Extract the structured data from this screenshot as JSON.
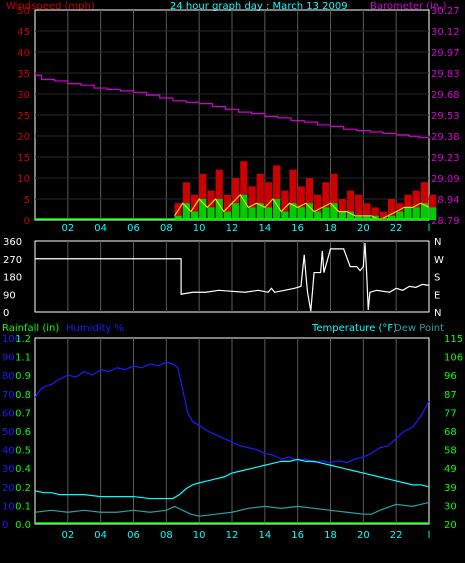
{
  "title": "24 hour graph day : March 13 2009",
  "colors": {
    "background": "#000000",
    "frame": "#ffffff",
    "grid": "#5a5a5a",
    "wind_label": "#cc0000",
    "wind_ticks": "#cc0000",
    "baro": "#d600d6",
    "title": "#00ffff",
    "wind_gust": "#cc0000",
    "wind_avg": "#00cc00",
    "wind_line": "#ffcc00",
    "direction": "#ffffff",
    "rain": "#00ff00",
    "humidity": "#1a1aff",
    "temperature": "#00ffff",
    "dewpoint": "#2aa0a0",
    "hour_ticks": "#00ffff"
  },
  "chart_data": [
    {
      "type": "line",
      "name": "wind-barometer",
      "left_label": "Windspeed (mph)",
      "right_label": "Barometer (in.)",
      "x_ticks": [
        "02",
        "04",
        "06",
        "08",
        "10",
        "12",
        "14",
        "16",
        "18",
        "20",
        "22",
        "l"
      ],
      "y_left_ticks": [
        "50",
        "45",
        "40",
        "35",
        "30",
        "25",
        "20",
        "15",
        "10",
        "5",
        "0"
      ],
      "y_right_ticks": [
        "30.27",
        "30.12",
        "29.97",
        "29.83",
        "29.68",
        "29.53",
        "29.38",
        "29.23",
        "29.09",
        "28.94",
        "28.79"
      ],
      "y_left_range": [
        0,
        50
      ],
      "y_right_range": [
        28.79,
        30.27
      ],
      "x_range": [
        0,
        24
      ],
      "barometer": {
        "x": [
          0,
          0.4,
          1.2,
          2.0,
          2.8,
          3.6,
          4.4,
          5.2,
          6.0,
          6.8,
          7.6,
          8.4,
          9.2,
          10.0,
          10.8,
          11.6,
          12.4,
          13.2,
          14.0,
          14.8,
          15.6,
          16.4,
          17.2,
          18.0,
          18.8,
          19.6,
          20.4,
          21.2,
          22.0,
          22.8,
          23.4,
          24
        ],
        "y": [
          29.81,
          29.78,
          29.77,
          29.75,
          29.74,
          29.72,
          29.71,
          29.7,
          29.69,
          29.67,
          29.65,
          29.63,
          29.62,
          29.61,
          29.59,
          29.57,
          29.55,
          29.54,
          29.52,
          29.51,
          29.49,
          29.48,
          29.46,
          29.45,
          29.43,
          29.42,
          29.41,
          29.4,
          29.39,
          29.38,
          29.37,
          29.38
        ]
      },
      "wind_gust": {
        "x": [
          8.5,
          9.0,
          9.5,
          10.0,
          10.5,
          11.0,
          11.5,
          12.0,
          12.5,
          13.0,
          13.5,
          14.0,
          14.5,
          15.0,
          15.5,
          16.0,
          16.5,
          17.0,
          17.5,
          18.0,
          18.5,
          19.0,
          19.5,
          20.0,
          20.5,
          21.0,
          21.5,
          22.0,
          22.5,
          23.0,
          23.5,
          24
        ],
        "y": [
          4,
          9,
          6,
          11,
          7,
          12,
          6,
          10,
          14,
          8,
          11,
          9,
          13,
          7,
          12,
          8,
          10,
          6,
          9,
          11,
          5,
          7,
          6,
          4,
          3,
          2,
          5,
          4,
          6,
          7,
          9,
          6
        ]
      },
      "wind_avg": {
        "x": [
          8.5,
          9.0,
          9.5,
          10.0,
          10.5,
          11.0,
          11.5,
          12.0,
          12.5,
          13.0,
          13.5,
          14.0,
          14.5,
          15.0,
          15.5,
          16.0,
          16.5,
          17.0,
          17.5,
          18.0,
          18.5,
          19.0,
          19.5,
          20.0,
          20.5,
          21.0,
          21.5,
          22.0,
          22.5,
          23.0,
          23.5,
          24
        ],
        "y": [
          1,
          4,
          2,
          5,
          3,
          5,
          2,
          4,
          6,
          3,
          4,
          3,
          5,
          2,
          4,
          3,
          4,
          2,
          3,
          4,
          2,
          2,
          1,
          1,
          1,
          0,
          1,
          2,
          3,
          3,
          4,
          3
        ]
      }
    },
    {
      "type": "line",
      "name": "wind-direction",
      "y_left_ticks": [
        "360",
        "270",
        "180",
        "90",
        "0"
      ],
      "y_right_ticks": [
        "N",
        "W",
        "S",
        "E",
        "N"
      ],
      "y_range": [
        0,
        360
      ],
      "x_range": [
        0,
        24
      ],
      "direction": {
        "x": [
          0,
          8.9,
          8.9,
          9.6,
          10.4,
          11.2,
          12.0,
          12.8,
          13.6,
          14.2,
          14.4,
          14.6,
          15.2,
          15.8,
          16.2,
          16.4,
          16.5,
          16.6,
          16.8,
          17.0,
          17.4,
          17.5,
          17.6,
          18.0,
          18.4,
          18.8,
          19.2,
          19.6,
          19.8,
          20.0,
          20.1,
          20.2,
          20.3,
          20.4,
          20.8,
          21.2,
          21.6,
          22.0,
          22.4,
          22.8,
          23.2,
          23.6,
          24
        ],
        "y": [
          270,
          270,
          90,
          100,
          100,
          110,
          105,
          100,
          110,
          100,
          120,
          100,
          110,
          120,
          130,
          290,
          190,
          100,
          5,
          200,
          200,
          310,
          200,
          320,
          320,
          320,
          230,
          230,
          210,
          230,
          350,
          200,
          10,
          100,
          110,
          105,
          100,
          120,
          110,
          130,
          125,
          140,
          135
        ]
      }
    },
    {
      "type": "line",
      "name": "rain-humidity-temperature",
      "left_label_rain": "Rainfall (in)",
      "left_label_humidity": "Humidity %",
      "right_label_temperature": "Temperature (°F)",
      "right_label_dewpoint": "Dew Point",
      "x_ticks": [
        "02",
        "04",
        "06",
        "08",
        "10",
        "12",
        "14",
        "16",
        "18",
        "20",
        "22",
        "l"
      ],
      "humidity_ticks": [
        "100",
        "90",
        "80",
        "70",
        "60",
        "50",
        "40",
        "30",
        "20",
        "10",
        "0"
      ],
      "rain_ticks": [
        "1.2",
        "1.1",
        "0.9",
        "0.8",
        "0.7",
        "0.6",
        "0.5",
        "0.4",
        "0.2",
        "0.1",
        "0.0"
      ],
      "temperature_ticks": [
        "115",
        "106",
        "96",
        "87",
        "77",
        "68",
        "58",
        "49",
        "39",
        "30",
        "20"
      ],
      "humidity_range": [
        0,
        100
      ],
      "temperature_range": [
        20,
        115
      ],
      "x_range": [
        0,
        24
      ],
      "humidity": {
        "x": [
          0,
          0.3,
          0.6,
          1.0,
          1.5,
          2.0,
          2.5,
          3.0,
          3.5,
          4.0,
          4.5,
          5.0,
          5.5,
          6.0,
          6.5,
          7.0,
          7.5,
          8.0,
          8.4,
          8.7,
          9.0,
          9.3,
          9.6,
          10.0,
          10.5,
          11.0,
          11.5,
          12.0,
          12.5,
          13.0,
          13.5,
          14.0,
          14.5,
          15.0,
          15.5,
          16.0,
          16.5,
          17.0,
          17.5,
          18.0,
          18.5,
          19.0,
          19.5,
          20.0,
          20.5,
          21.0,
          21.5,
          22.0,
          22.5,
          23.0,
          23.5,
          24
        ],
        "y": [
          68,
          72,
          74,
          75,
          78,
          80,
          79,
          82,
          80,
          83,
          82,
          84,
          83,
          85,
          84,
          86,
          85,
          87,
          86,
          84,
          72,
          60,
          55,
          53,
          50,
          48,
          46,
          44,
          42,
          41,
          40,
          38,
          37,
          35,
          36,
          34,
          35,
          33,
          34,
          33,
          34,
          33,
          35,
          36,
          38,
          41,
          42,
          46,
          50,
          52,
          58,
          66
        ]
      },
      "temperature": {
        "x": [
          0,
          0.5,
          1.0,
          1.5,
          2.0,
          3.0,
          4.0,
          5.0,
          6.0,
          7.0,
          8.0,
          8.4,
          8.8,
          9.2,
          9.6,
          10.0,
          10.5,
          11.0,
          11.5,
          12.0,
          12.5,
          13.0,
          13.5,
          14.0,
          14.5,
          15.0,
          15.5,
          16.0,
          16.5,
          17.0,
          17.5,
          18.0,
          18.5,
          19.0,
          19.5,
          20.0,
          20.5,
          21.0,
          21.5,
          22.0,
          22.5,
          23.0,
          23.5,
          24
        ],
        "y": [
          37,
          36,
          36,
          35,
          35,
          35,
          34,
          34,
          34,
          33,
          33,
          33,
          35,
          38,
          40,
          41,
          42,
          43,
          44,
          46,
          47,
          48,
          49,
          50,
          51,
          52,
          52,
          53,
          52,
          52,
          51,
          50,
          49,
          48,
          47,
          46,
          45,
          44,
          43,
          42,
          41,
          40,
          40,
          39
        ]
      },
      "dewpoint": {
        "x": [
          0,
          1.0,
          2.0,
          3.0,
          4.0,
          5.0,
          6.0,
          7.0,
          8.0,
          8.5,
          9.0,
          9.5,
          10.0,
          11.0,
          12.0,
          13.0,
          14.0,
          15.0,
          16.0,
          17.0,
          18.0,
          19.0,
          20.0,
          20.5,
          21.0,
          22.0,
          23.0,
          24
        ],
        "y": [
          26,
          27,
          26,
          27,
          26,
          26,
          27,
          26,
          27,
          29,
          27,
          25,
          24,
          25,
          26,
          28,
          29,
          28,
          29,
          28,
          27,
          26,
          25,
          25,
          27,
          30,
          29,
          31
        ]
      },
      "rainfall": {
        "x": [
          0,
          24
        ],
        "y": [
          0,
          0
        ]
      }
    }
  ]
}
